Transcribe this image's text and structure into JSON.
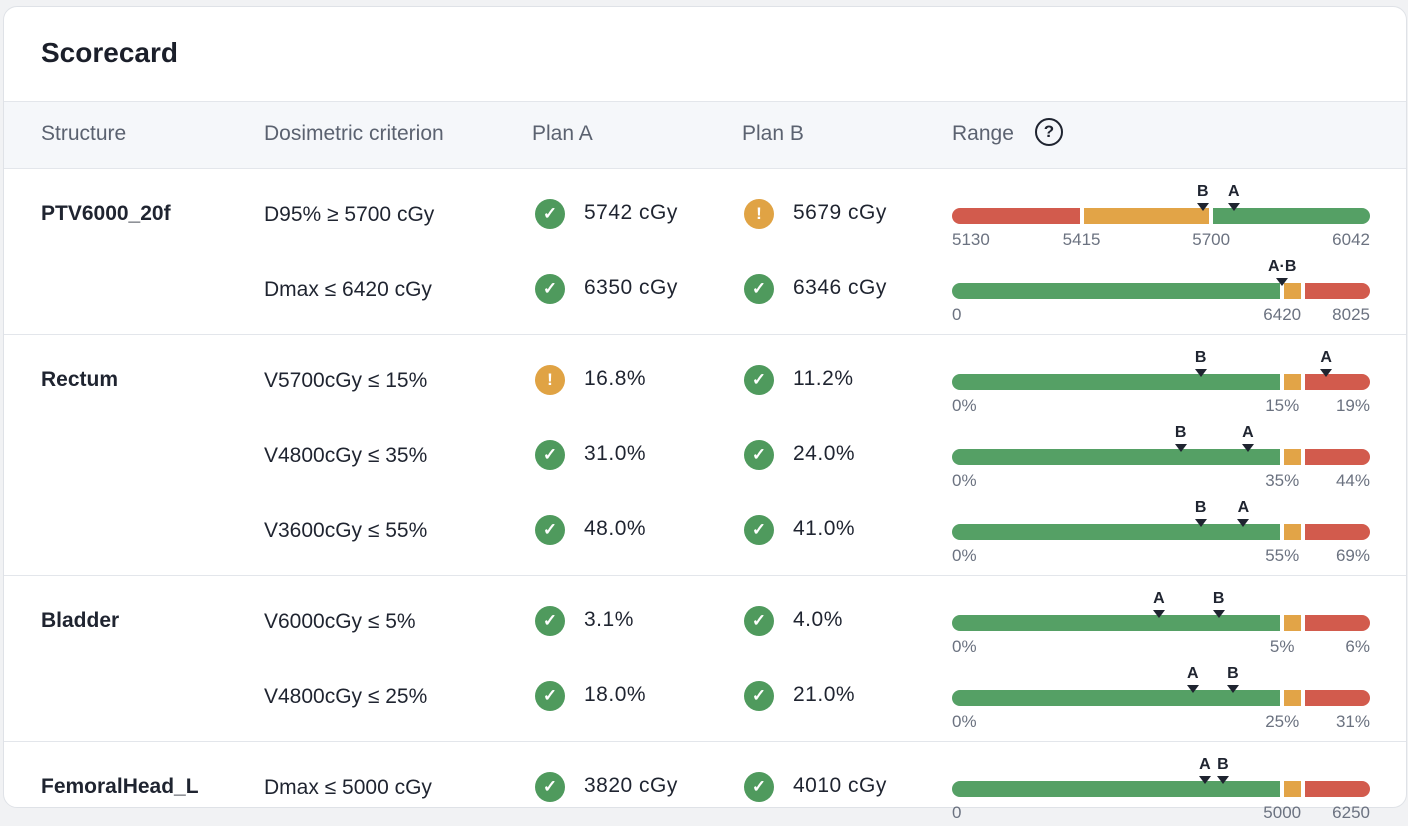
{
  "title": "Scorecard",
  "headers": {
    "structure": "Structure",
    "criterion": "Dosimetric criterion",
    "plan_a": "Plan A",
    "plan_b": "Plan B",
    "range": "Range"
  },
  "colors": {
    "green": "#55a065",
    "amber": "#e2a447",
    "red": "#d25b4d",
    "ok_icon": "#4f9a5d",
    "warn_icon": "#e0a344"
  },
  "groups": [
    {
      "structure": "PTV6000_20f",
      "rows": [
        {
          "criterion": "D95% ≥ 5700 cGy",
          "plan_a": {
            "value": "5742 cGy",
            "status": "ok"
          },
          "plan_b": {
            "value": "5679 cGy",
            "status": "warn"
          },
          "range": {
            "segments": [
              {
                "color": "red",
                "from": 0,
                "to": 0.31
              },
              {
                "color": "amber",
                "from": 0.31,
                "to": 0.62
              },
              {
                "color": "green",
                "from": 0.62,
                "to": 1
              }
            ],
            "ticks": [
              {
                "label": "5130",
                "at": 0,
                "align": "left"
              },
              {
                "label": "5415",
                "at": 0.31,
                "align": "center"
              },
              {
                "label": "5700",
                "at": 0.62,
                "align": "center"
              },
              {
                "label": "6042",
                "at": 1,
                "align": "right"
              }
            ],
            "markers": [
              {
                "label": "B",
                "at": 0.6
              },
              {
                "label": "A",
                "at": 0.674
              }
            ]
          }
        },
        {
          "criterion": "Dmax ≤ 6420 cGy",
          "plan_a": {
            "value": "6350 cGy",
            "status": "ok"
          },
          "plan_b": {
            "value": "6346 cGy",
            "status": "ok"
          },
          "range": {
            "segments": [
              {
                "color": "green",
                "from": 0,
                "to": 0.79
              },
              {
                "color": "amber",
                "from": 0.79,
                "to": 0.84
              },
              {
                "color": "red",
                "from": 0.84,
                "to": 1
              }
            ],
            "ticks": [
              {
                "label": "0",
                "at": 0,
                "align": "left"
              },
              {
                "label": "6420",
                "at": 0.79,
                "align": "center"
              },
              {
                "label": "8025",
                "at": 1,
                "align": "right"
              }
            ],
            "markers": [
              {
                "label": "A·B",
                "at": 0.79
              }
            ]
          }
        }
      ]
    },
    {
      "structure": "Rectum",
      "rows": [
        {
          "criterion": "V5700cGy ≤ 15%",
          "plan_a": {
            "value": "16.8%",
            "status": "warn"
          },
          "plan_b": {
            "value": "11.2%",
            "status": "ok"
          },
          "range": {
            "segments": [
              {
                "color": "green",
                "from": 0,
                "to": 0.79
              },
              {
                "color": "amber",
                "from": 0.79,
                "to": 0.84
              },
              {
                "color": "red",
                "from": 0.84,
                "to": 1
              }
            ],
            "ticks": [
              {
                "label": "0%",
                "at": 0,
                "align": "left"
              },
              {
                "label": "15%",
                "at": 0.79,
                "align": "center"
              },
              {
                "label": "19%",
                "at": 1,
                "align": "right"
              }
            ],
            "markers": [
              {
                "label": "B",
                "at": 0.595
              },
              {
                "label": "A",
                "at": 0.895
              }
            ]
          }
        },
        {
          "criterion": "V4800cGy ≤ 35%",
          "plan_a": {
            "value": "31.0%",
            "status": "ok"
          },
          "plan_b": {
            "value": "24.0%",
            "status": "ok"
          },
          "range": {
            "segments": [
              {
                "color": "green",
                "from": 0,
                "to": 0.79
              },
              {
                "color": "amber",
                "from": 0.79,
                "to": 0.84
              },
              {
                "color": "red",
                "from": 0.84,
                "to": 1
              }
            ],
            "ticks": [
              {
                "label": "0%",
                "at": 0,
                "align": "left"
              },
              {
                "label": "35%",
                "at": 0.79,
                "align": "center"
              },
              {
                "label": "44%",
                "at": 1,
                "align": "right"
              }
            ],
            "markers": [
              {
                "label": "B",
                "at": 0.547
              },
              {
                "label": "A",
                "at": 0.708
              }
            ]
          }
        },
        {
          "criterion": "V3600cGy ≤ 55%",
          "plan_a": {
            "value": "48.0%",
            "status": "ok"
          },
          "plan_b": {
            "value": "41.0%",
            "status": "ok"
          },
          "range": {
            "segments": [
              {
                "color": "green",
                "from": 0,
                "to": 0.79
              },
              {
                "color": "amber",
                "from": 0.79,
                "to": 0.84
              },
              {
                "color": "red",
                "from": 0.84,
                "to": 1
              }
            ],
            "ticks": [
              {
                "label": "0%",
                "at": 0,
                "align": "left"
              },
              {
                "label": "55%",
                "at": 0.79,
                "align": "center"
              },
              {
                "label": "69%",
                "at": 1,
                "align": "right"
              }
            ],
            "markers": [
              {
                "label": "B",
                "at": 0.595
              },
              {
                "label": "A",
                "at": 0.697
              }
            ]
          }
        }
      ]
    },
    {
      "structure": "Bladder",
      "rows": [
        {
          "criterion": "V6000cGy ≤ 5%",
          "plan_a": {
            "value": "3.1%",
            "status": "ok"
          },
          "plan_b": {
            "value": "4.0%",
            "status": "ok"
          },
          "range": {
            "segments": [
              {
                "color": "green",
                "from": 0,
                "to": 0.79
              },
              {
                "color": "amber",
                "from": 0.79,
                "to": 0.84
              },
              {
                "color": "red",
                "from": 0.84,
                "to": 1
              }
            ],
            "ticks": [
              {
                "label": "0%",
                "at": 0,
                "align": "left"
              },
              {
                "label": "5%",
                "at": 0.79,
                "align": "center"
              },
              {
                "label": "6%",
                "at": 1,
                "align": "right"
              }
            ],
            "markers": [
              {
                "label": "A",
                "at": 0.495
              },
              {
                "label": "B",
                "at": 0.638
              }
            ]
          }
        },
        {
          "criterion": "V4800cGy ≤ 25%",
          "plan_a": {
            "value": "18.0%",
            "status": "ok"
          },
          "plan_b": {
            "value": "21.0%",
            "status": "ok"
          },
          "range": {
            "segments": [
              {
                "color": "green",
                "from": 0,
                "to": 0.79
              },
              {
                "color": "amber",
                "from": 0.79,
                "to": 0.84
              },
              {
                "color": "red",
                "from": 0.84,
                "to": 1
              }
            ],
            "ticks": [
              {
                "label": "0%",
                "at": 0,
                "align": "left"
              },
              {
                "label": "25%",
                "at": 0.79,
                "align": "center"
              },
              {
                "label": "31%",
                "at": 1,
                "align": "right"
              }
            ],
            "markers": [
              {
                "label": "A",
                "at": 0.576
              },
              {
                "label": "B",
                "at": 0.672
              }
            ]
          }
        }
      ]
    },
    {
      "structure": "FemoralHead_L",
      "rows": [
        {
          "criterion": "Dmax ≤ 5000 cGy",
          "plan_a": {
            "value": "3820 cGy",
            "status": "ok"
          },
          "plan_b": {
            "value": "4010 cGy",
            "status": "ok"
          },
          "range": {
            "segments": [
              {
                "color": "green",
                "from": 0,
                "to": 0.79
              },
              {
                "color": "amber",
                "from": 0.79,
                "to": 0.84
              },
              {
                "color": "red",
                "from": 0.84,
                "to": 1
              }
            ],
            "ticks": [
              {
                "label": "0",
                "at": 0,
                "align": "left"
              },
              {
                "label": "5000",
                "at": 0.79,
                "align": "center"
              },
              {
                "label": "6250",
                "at": 1,
                "align": "right"
              }
            ],
            "markers": [
              {
                "label": "A",
                "at": 0.605
              },
              {
                "label": "B",
                "at": 0.648
              }
            ]
          }
        }
      ]
    }
  ]
}
